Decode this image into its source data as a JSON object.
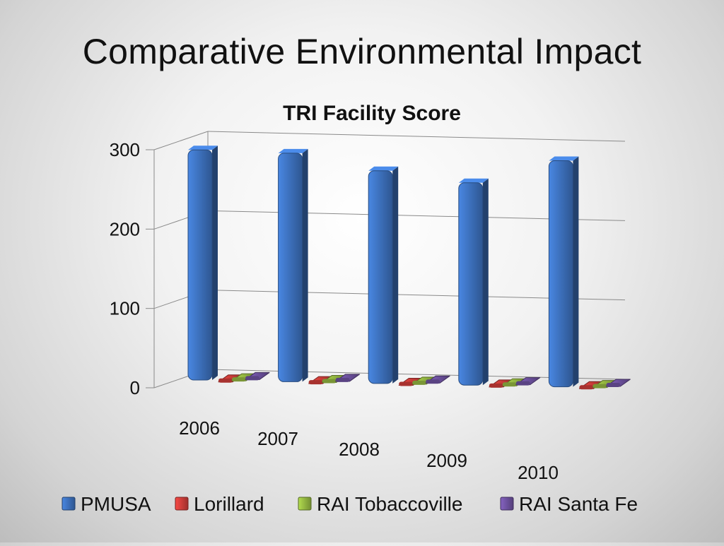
{
  "slide": {
    "title": "Comparative Environmental Impact"
  },
  "chart_data": {
    "type": "bar",
    "title": "TRI Facility Score",
    "xlabel": "",
    "ylabel": "",
    "ylim": [
      0,
      300
    ],
    "yticks": [
      0,
      100,
      200,
      300
    ],
    "categories": [
      "2006",
      "2007",
      "2008",
      "2009",
      "2010"
    ],
    "series": [
      {
        "name": "PMUSA",
        "values": [
          290,
          288,
          268,
          255,
          285
        ]
      },
      {
        "name": "Lorillard",
        "values": [
          5,
          5,
          5,
          5,
          5
        ]
      },
      {
        "name": "RAI Tobaccoville",
        "values": [
          3,
          3,
          3,
          3,
          3
        ]
      },
      {
        "name": "RAI Santa Fe",
        "values": [
          2,
          2,
          2,
          2,
          2
        ]
      }
    ],
    "grid": true,
    "legend_position": "bottom",
    "colors": [
      "#3a6cb5",
      "#c63b37",
      "#8fb13f",
      "#6a4f9a"
    ]
  }
}
